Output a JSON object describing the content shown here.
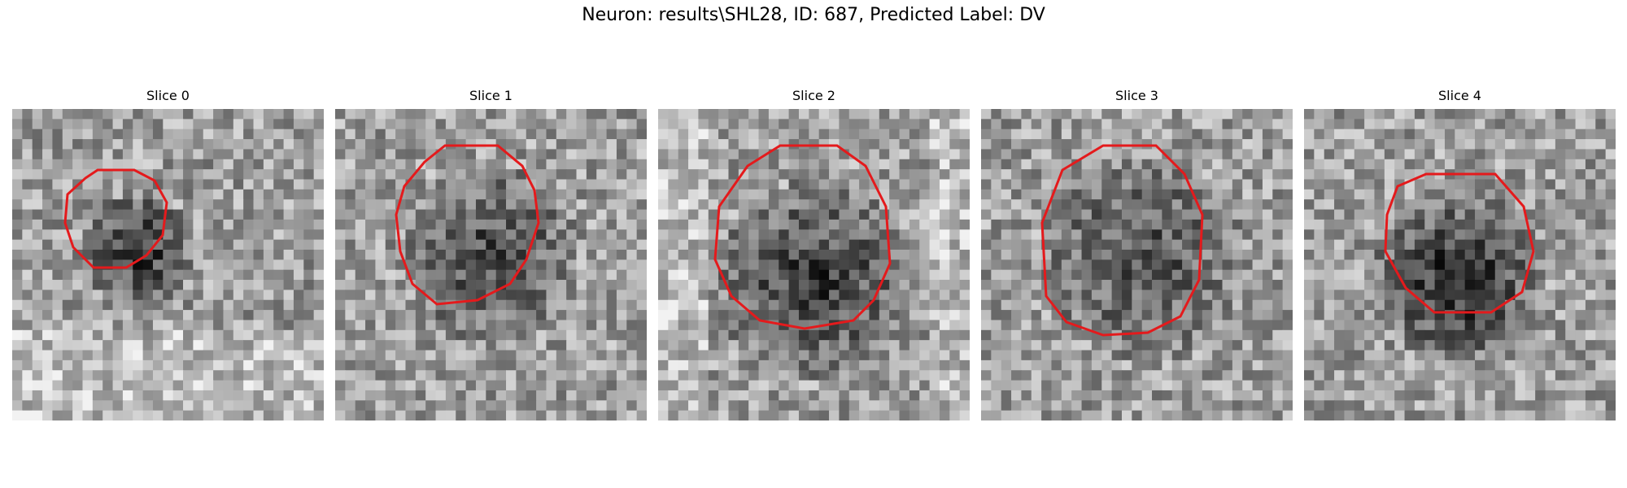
{
  "figure": {
    "title": "Neuron: results\\SHL28, ID: 687, Predicted Label: DV"
  },
  "panels": [
    {
      "title": "Slice 0",
      "contour_color": "#e41a1c"
    },
    {
      "title": "Slice 1",
      "contour_color": "#e41a1c"
    },
    {
      "title": "Slice 2",
      "contour_color": "#e41a1c"
    },
    {
      "title": "Slice 3",
      "contour_color": "#e41a1c"
    },
    {
      "title": "Slice 4",
      "contour_color": "#e41a1c"
    }
  ],
  "colors": {
    "background": "#ffffff",
    "contour": "#e41a1c"
  }
}
